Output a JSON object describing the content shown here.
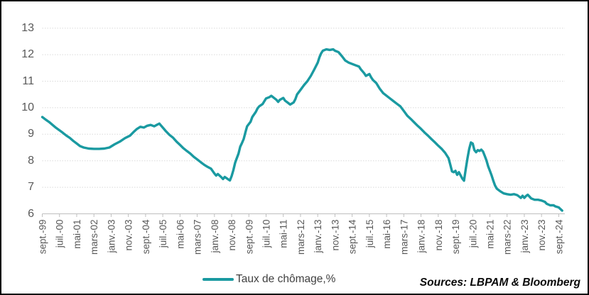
{
  "figure": {
    "legend_label": "Taux de chômage,%",
    "sources_text": "Sources: LBPAM & Bloomberg"
  },
  "chart_data": {
    "type": "line",
    "title": "",
    "legend": [
      "Taux de chômage,%"
    ],
    "legend_position": "bottom-center",
    "ylabel": "",
    "xlabel": "",
    "ylim": [
      6,
      13
    ],
    "grid": "horizontal-dotted",
    "line_color": "#1A9AA1",
    "grid_color": "#D9D9D9",
    "axis_color": "#BFBFBF",
    "tick_label_color": "#595959",
    "y_tick_labels": [
      "13",
      "12",
      "11",
      "10",
      "9",
      "8",
      "7",
      "6"
    ],
    "x_tick_labels": [
      "sept.-99",
      "juil.-00",
      "mai-01",
      "mars-02",
      "janv.-03",
      "nov.-03",
      "sept.-04",
      "juil.-05",
      "mai-06",
      "mars-07",
      "janv.-08",
      "nov.-08",
      "sept.-09",
      "juil.-10",
      "mai-11",
      "mars-12",
      "janv.-13",
      "nov.-13",
      "sept.-14",
      "juil.-15",
      "mai-16",
      "mars-17",
      "janv.-18",
      "nov.-18",
      "sept.-19",
      "juil.-20",
      "mai-21",
      "mars-22",
      "janv.-23",
      "nov.-23",
      "sept.-24"
    ],
    "x_months_per_tick": 10,
    "series": [
      {
        "name": "Taux de chômage,%",
        "x_unit": "months-since-sept-1999",
        "points": [
          [
            0,
            9.65
          ],
          [
            2,
            9.55
          ],
          [
            4,
            9.46
          ],
          [
            6,
            9.35
          ],
          [
            8,
            9.24
          ],
          [
            10,
            9.15
          ],
          [
            12,
            9.05
          ],
          [
            14,
            8.95
          ],
          [
            16,
            8.86
          ],
          [
            18,
            8.75
          ],
          [
            20,
            8.65
          ],
          [
            22,
            8.55
          ],
          [
            24,
            8.5
          ],
          [
            27,
            8.46
          ],
          [
            30,
            8.45
          ],
          [
            33,
            8.45
          ],
          [
            36,
            8.46
          ],
          [
            39,
            8.5
          ],
          [
            42,
            8.62
          ],
          [
            45,
            8.72
          ],
          [
            48,
            8.85
          ],
          [
            51,
            8.95
          ],
          [
            53,
            9.08
          ],
          [
            55,
            9.2
          ],
          [
            57,
            9.28
          ],
          [
            59,
            9.25
          ],
          [
            61,
            9.32
          ],
          [
            63,
            9.35
          ],
          [
            65,
            9.3
          ],
          [
            67,
            9.37
          ],
          [
            68,
            9.4
          ],
          [
            70,
            9.25
          ],
          [
            72,
            9.1
          ],
          [
            74,
            8.97
          ],
          [
            76,
            8.87
          ],
          [
            78,
            8.72
          ],
          [
            80,
            8.6
          ],
          [
            82,
            8.47
          ],
          [
            84,
            8.37
          ],
          [
            86,
            8.27
          ],
          [
            88,
            8.15
          ],
          [
            90,
            8.05
          ],
          [
            92,
            7.95
          ],
          [
            94,
            7.85
          ],
          [
            96,
            7.77
          ],
          [
            98,
            7.7
          ],
          [
            100,
            7.52
          ],
          [
            101,
            7.44
          ],
          [
            102,
            7.5
          ],
          [
            104,
            7.38
          ],
          [
            105,
            7.31
          ],
          [
            106,
            7.39
          ],
          [
            108,
            7.3
          ],
          [
            109,
            7.26
          ],
          [
            110,
            7.42
          ],
          [
            111,
            7.65
          ],
          [
            112,
            7.92
          ],
          [
            113,
            8.1
          ],
          [
            114,
            8.27
          ],
          [
            115,
            8.53
          ],
          [
            116,
            8.67
          ],
          [
            117,
            8.82
          ],
          [
            118,
            9.07
          ],
          [
            119,
            9.3
          ],
          [
            121,
            9.47
          ],
          [
            122,
            9.65
          ],
          [
            124,
            9.84
          ],
          [
            125,
            9.97
          ],
          [
            126,
            10.05
          ],
          [
            128,
            10.14
          ],
          [
            129,
            10.25
          ],
          [
            130,
            10.35
          ],
          [
            132,
            10.4
          ],
          [
            133,
            10.45
          ],
          [
            134,
            10.4
          ],
          [
            136,
            10.3
          ],
          [
            137,
            10.22
          ],
          [
            138,
            10.3
          ],
          [
            140,
            10.37
          ],
          [
            141,
            10.27
          ],
          [
            143,
            10.17
          ],
          [
            144,
            10.12
          ],
          [
            146,
            10.2
          ],
          [
            147,
            10.32
          ],
          [
            148,
            10.5
          ],
          [
            150,
            10.67
          ],
          [
            152,
            10.85
          ],
          [
            154,
            11.0
          ],
          [
            156,
            11.2
          ],
          [
            158,
            11.44
          ],
          [
            160,
            11.7
          ],
          [
            161,
            11.9
          ],
          [
            162,
            12.05
          ],
          [
            163,
            12.15
          ],
          [
            165,
            12.2
          ],
          [
            167,
            12.18
          ],
          [
            169,
            12.2
          ],
          [
            170,
            12.15
          ],
          [
            172,
            12.1
          ],
          [
            174,
            11.95
          ],
          [
            176,
            11.78
          ],
          [
            178,
            11.7
          ],
          [
            180,
            11.65
          ],
          [
            182,
            11.6
          ],
          [
            184,
            11.55
          ],
          [
            185,
            11.45
          ],
          [
            187,
            11.3
          ],
          [
            188,
            11.2
          ],
          [
            190,
            11.27
          ],
          [
            191,
            11.15
          ],
          [
            192,
            11.05
          ],
          [
            194,
            10.93
          ],
          [
            196,
            10.72
          ],
          [
            198,
            10.55
          ],
          [
            200,
            10.45
          ],
          [
            202,
            10.35
          ],
          [
            204,
            10.25
          ],
          [
            206,
            10.15
          ],
          [
            208,
            10.05
          ],
          [
            210,
            9.88
          ],
          [
            212,
            9.7
          ],
          [
            214,
            9.58
          ],
          [
            216,
            9.45
          ],
          [
            218,
            9.32
          ],
          [
            220,
            9.2
          ],
          [
            222,
            9.07
          ],
          [
            224,
            8.95
          ],
          [
            226,
            8.82
          ],
          [
            228,
            8.7
          ],
          [
            230,
            8.57
          ],
          [
            232,
            8.45
          ],
          [
            234,
            8.3
          ],
          [
            236,
            8.1
          ],
          [
            237,
            7.85
          ],
          [
            238,
            7.6
          ],
          [
            239,
            7.57
          ],
          [
            240,
            7.62
          ],
          [
            241,
            7.47
          ],
          [
            242,
            7.57
          ],
          [
            243,
            7.45
          ],
          [
            244,
            7.33
          ],
          [
            245,
            7.25
          ],
          [
            246,
            7.7
          ],
          [
            247,
            8.1
          ],
          [
            248,
            8.45
          ],
          [
            249,
            8.69
          ],
          [
            250,
            8.65
          ],
          [
            251,
            8.4
          ],
          [
            252,
            8.32
          ],
          [
            253,
            8.4
          ],
          [
            254,
            8.37
          ],
          [
            255,
            8.42
          ],
          [
            256,
            8.35
          ],
          [
            257,
            8.19
          ],
          [
            258,
            8.02
          ],
          [
            259,
            7.79
          ],
          [
            260,
            7.62
          ],
          [
            261,
            7.45
          ],
          [
            262,
            7.25
          ],
          [
            263,
            7.07
          ],
          [
            264,
            6.95
          ],
          [
            266,
            6.85
          ],
          [
            268,
            6.77
          ],
          [
            270,
            6.74
          ],
          [
            272,
            6.72
          ],
          [
            274,
            6.74
          ],
          [
            276,
            6.7
          ],
          [
            277,
            6.65
          ],
          [
            278,
            6.6
          ],
          [
            279,
            6.68
          ],
          [
            280,
            6.6
          ],
          [
            281,
            6.67
          ],
          [
            282,
            6.72
          ],
          [
            283,
            6.65
          ],
          [
            284,
            6.58
          ],
          [
            286,
            6.53
          ],
          [
            288,
            6.53
          ],
          [
            290,
            6.5
          ],
          [
            292,
            6.45
          ],
          [
            293,
            6.38
          ],
          [
            295,
            6.32
          ],
          [
            297,
            6.32
          ],
          [
            298,
            6.28
          ],
          [
            300,
            6.24
          ],
          [
            301,
            6.18
          ],
          [
            302,
            6.12
          ]
        ]
      }
    ],
    "sources_note": "Sources: LBPAM & Bloomberg"
  }
}
